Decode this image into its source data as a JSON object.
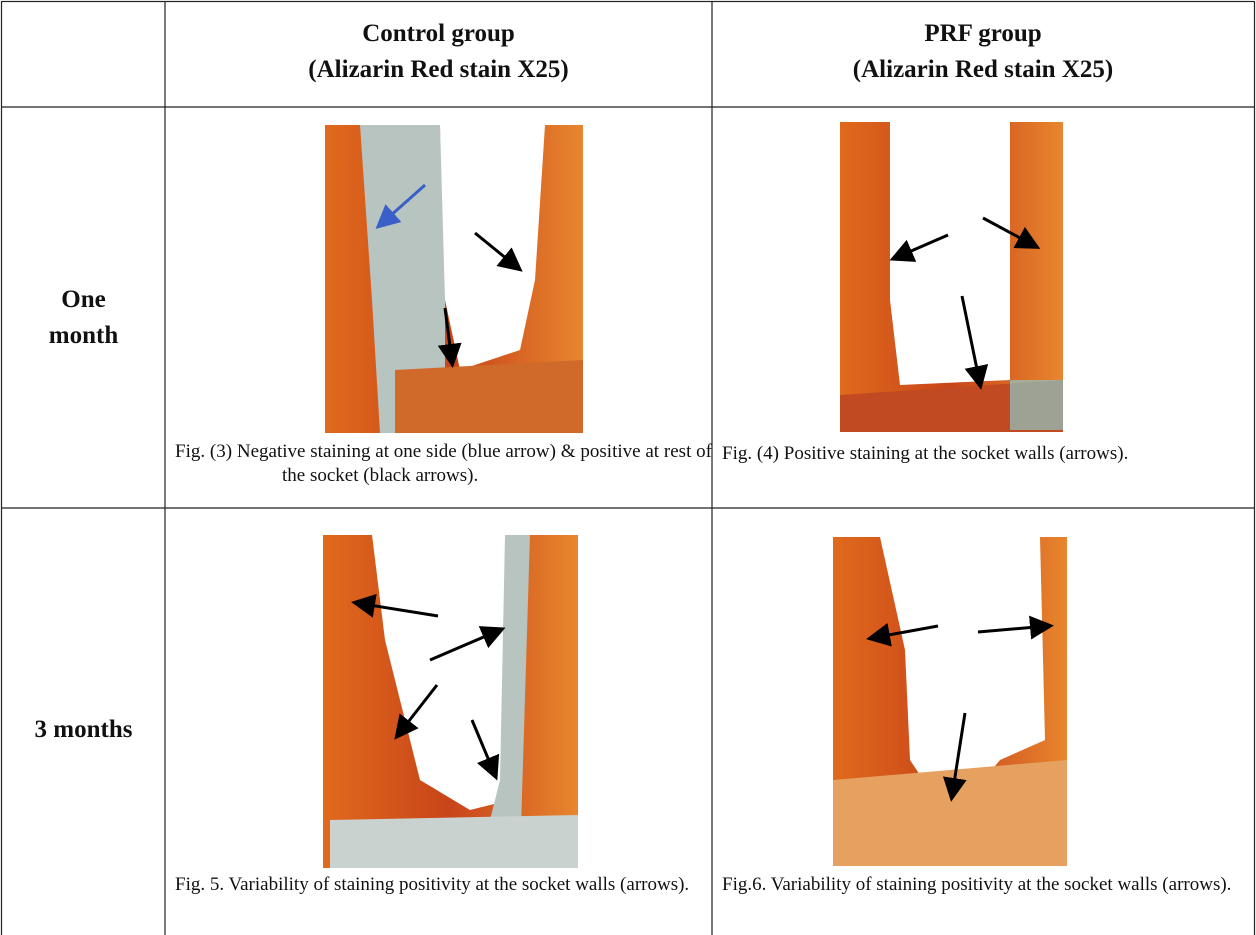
{
  "header": {
    "columns": [
      {
        "title": "Control group",
        "subtitle": "(Alizarin Red stain X25)"
      },
      {
        "title": "PRF group",
        "subtitle": "(Alizarin Red stain X25)"
      }
    ]
  },
  "rows": [
    {
      "label": "One month",
      "cells": [
        {
          "caption": "Fig. (3) Negative staining at one side (blue arrow) & positive at rest of the socket (black arrows)."
        },
        {
          "caption": "Fig. (4) Positive staining at the socket walls (arrows)."
        }
      ]
    },
    {
      "label": "3 months",
      "cells": [
        {
          "caption": "Fig. 5. Variability of staining positivity at the socket walls (arrows)."
        },
        {
          "caption": "Fig.6. Variability of staining positivity at the socket walls (arrows)."
        }
      ]
    }
  ]
}
